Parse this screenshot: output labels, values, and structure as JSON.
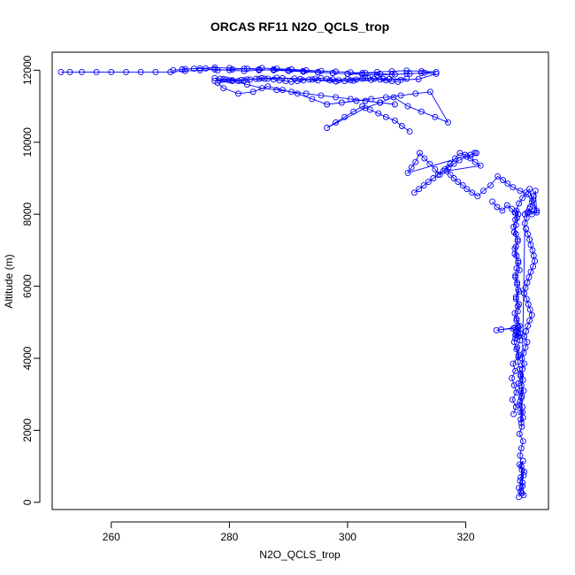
{
  "chart_data": {
    "type": "scatter",
    "title": "ORCAS RF11 N2O_QCLS_trop",
    "xlabel": "N2O_QCLS_trop",
    "ylabel": "Altitude (m)",
    "xlim": [
      250,
      334
    ],
    "ylim": [
      -200,
      12500
    ],
    "xticks": [
      260,
      280,
      300,
      320
    ],
    "yticks": [
      0,
      2000,
      4000,
      6000,
      8000,
      10000,
      12000
    ],
    "grid": false,
    "legend": "none",
    "marker": "open-circle",
    "connected": true,
    "series_color": "#0000ff",
    "series": [
      {
        "x": [
          329.0,
          329.3,
          329.6,
          329.2,
          329.8,
          329.5,
          329.1,
          329.7,
          329.4,
          329.9,
          329.3,
          329.6,
          329.0,
          329.5,
          329.8,
          329.2,
          329.4,
          329.7,
          329.1,
          329.5,
          329.3,
          329.6,
          329.0,
          329.4,
          329.2,
          328.9,
          329.3,
          329.1,
          328.8,
          329.0,
          328.7,
          329.2,
          328.9,
          329.1,
          328.6,
          328.8,
          329.0,
          328.5,
          328.9,
          328.7,
          328.4,
          328.6,
          328.9,
          328.3,
          328.5,
          328.8,
          328.2,
          328.5,
          328.7,
          328.3,
          328.6,
          328.9,
          328.4,
          328.1,
          328.5,
          328.8,
          328.3,
          328.6,
          328.9,
          329.1,
          328.4,
          328.7,
          329.0,
          328.5,
          328.8,
          328.3,
          328.6,
          328.9,
          328.4,
          328.2,
          328.6,
          328.9,
          328.0,
          328.4,
          327.8,
          328.2,
          328.6,
          327.9,
          328.5,
          328.1
        ],
        "y": [
          150,
          300,
          450,
          600,
          750,
          900,
          1050,
          1150,
          1000,
          850,
          700,
          550,
          400,
          250,
          200,
          1300,
          1500,
          1700,
          1900,
          2100,
          2300,
          2500,
          2700,
          2900,
          3100,
          3300,
          3500,
          3700,
          3900,
          4100,
          4300,
          4500,
          4700,
          4900,
          5100,
          5300,
          5500,
          5700,
          5900,
          6100,
          6300,
          6500,
          6700,
          6900,
          7100,
          7300,
          7500,
          7700,
          7900,
          8050,
          8100,
          8000,
          7850,
          7650,
          7450,
          7250,
          7050,
          6850,
          6650,
          6450,
          6250,
          6050,
          5850,
          5650,
          5450,
          5250,
          5050,
          4850,
          4650,
          4450,
          4250,
          4050,
          3850,
          3650,
          3450,
          3250,
          3050,
          2850,
          2650,
          2450
        ]
      },
      {
        "x": [
          330.2,
          330.5,
          330.8,
          331.0,
          331.3,
          331.5,
          331.7,
          331.4,
          331.0,
          330.7,
          330.4,
          330.1,
          329.9,
          330.3,
          330.6,
          330.9,
          331.2,
          330.8,
          330.5,
          330.2,
          329.9,
          330.4,
          330.1,
          329.8,
          329.5,
          329.9,
          329.6,
          329.3,
          329.7,
          329.4,
          329.8,
          329.5,
          329.2,
          329.6,
          329.3,
          329.7,
          329.4,
          330.0,
          330.3,
          330.6,
          330.9,
          331.2,
          331.5,
          331.8,
          332.0,
          331.6,
          331.2,
          330.8,
          330.4,
          330.0
        ],
        "y": [
          7600,
          7450,
          7300,
          7150,
          7000,
          6850,
          6700,
          6550,
          6400,
          6250,
          6100,
          5950,
          5800,
          5650,
          5500,
          5350,
          5200,
          5050,
          4900,
          4750,
          4600,
          4450,
          4300,
          4150,
          4000,
          3850,
          3700,
          3550,
          3400,
          3250,
          3100,
          2950,
          2800,
          2650,
          2500,
          2350,
          2200,
          7750,
          7900,
          8050,
          8200,
          8350,
          8500,
          8650,
          8050,
          8100,
          8000,
          8150,
          8050,
          8000
        ]
      },
      {
        "x": [
          324.5,
          325.3,
          326.2,
          327.0,
          327.8,
          328.4,
          329.0,
          329.6,
          330.2,
          330.8,
          331.4,
          332.0,
          330.5,
          329.2,
          328.0,
          327.1,
          326.3,
          325.4,
          324.2,
          323.0,
          322.0,
          321.1,
          320.2,
          319.5,
          318.7,
          318.0,
          317.4,
          316.8,
          322.5,
          321.6,
          320.8,
          319.9,
          319.0,
          318.2,
          317.4,
          316.5,
          315.6,
          314.8,
          313.9,
          313.0,
          312.2,
          311.5,
          310.8,
          310.2,
          321.8,
          321.5,
          320.8,
          320.2,
          318.9,
          318.0,
          317.1,
          316.2,
          315.3,
          314.5,
          313.7,
          312.9,
          312.1,
          311.3
        ],
        "y": [
          8350,
          8200,
          8100,
          8250,
          8150,
          8050,
          8300,
          8450,
          8600,
          8700,
          8400,
          8100,
          8550,
          8650,
          8750,
          8850,
          8950,
          9050,
          8800,
          8650,
          8500,
          8600,
          8700,
          8800,
          8900,
          9000,
          9100,
          9200,
          9350,
          9450,
          9550,
          9650,
          9700,
          9550,
          9400,
          9250,
          9100,
          9250,
          9400,
          9550,
          9700,
          9450,
          9300,
          9150,
          9700,
          9700,
          9650,
          9600,
          9500,
          9400,
          9300,
          9200,
          9100,
          9000,
          8900,
          8800,
          8700,
          8600
        ]
      },
      {
        "x": [
          310.5,
          309.2,
          308.0,
          306.5,
          305.2,
          303.8,
          302.5,
          301.0,
          299.5,
          298.0,
          296.5,
          303.0,
          305.5,
          307.8,
          310.2,
          312.5,
          314.8,
          317.0,
          314.0,
          311.5,
          309.0,
          306.5,
          304.0,
          301.5,
          299.0,
          296.5,
          294.0,
          291.5,
          289.0,
          286.5,
          284.0,
          281.5,
          279.0,
          278.0,
          280.5,
          283.0,
          285.5,
          288.0,
          290.5,
          293.0,
          295.5,
          298.0,
          300.5,
          303.0,
          305.5,
          308.0
        ],
        "y": [
          10300,
          10450,
          10600,
          10700,
          10800,
          10900,
          11000,
          10850,
          10700,
          10550,
          10400,
          10950,
          11100,
          11250,
          11000,
          10850,
          10700,
          10550,
          11400,
          11350,
          11300,
          11250,
          11200,
          11150,
          11100,
          11050,
          11200,
          11350,
          11450,
          11550,
          11400,
          11350,
          11500,
          11650,
          11700,
          11600,
          11500,
          11450,
          11400,
          11350,
          11300,
          11250,
          11200,
          11150,
          11100,
          11050
        ]
      },
      {
        "x": [
          251.5,
          253.0,
          255.0,
          257.5,
          260.0,
          262.5,
          265.0,
          267.5,
          270.0,
          272.5,
          275.0,
          277.5,
          280.0,
          282.5,
          285.0,
          287.5,
          290.0,
          292.5,
          295.0,
          297.5,
          300.0,
          302.5,
          305.0,
          307.5,
          310.0,
          312.5,
          315.0,
          313.0,
          310.5,
          308.0,
          305.5,
          303.0,
          300.5,
          298.0,
          295.5,
          293.0,
          290.5,
          288.0,
          285.5,
          283.0,
          280.5,
          278.0,
          276.0,
          274.0,
          272.0,
          270.5,
          272.5,
          275.0,
          277.5,
          280.0,
          282.5,
          285.0,
          287.5,
          290.0,
          292.5,
          295.0,
          297.5,
          300.0,
          302.5,
          305.0,
          307.5,
          310.0,
          312.5,
          315.0,
          312.0,
          309.0,
          306.0,
          303.0,
          300.0,
          297.0,
          294.0,
          291.0,
          288.0,
          285.0,
          282.0,
          279.0,
          277.5,
          280.0,
          283.0,
          286.0,
          289.0,
          292.0,
          295.0,
          298.0,
          301.0,
          304.0,
          307.0,
          310.0
        ],
        "y": [
          11950,
          11950,
          11950,
          11950,
          11950,
          11950,
          11950,
          11950,
          11950,
          11980,
          12000,
          12020,
          12000,
          11980,
          12000,
          12020,
          12000,
          11980,
          11950,
          11920,
          11900,
          11920,
          11950,
          11970,
          11990,
          11970,
          11950,
          11930,
          11900,
          11880,
          11900,
          11920,
          11940,
          11960,
          11980,
          12000,
          12020,
          12040,
          12060,
          12040,
          12020,
          12000,
          12050,
          12040,
          12020,
          12000,
          12030,
          12050,
          12070,
          12060,
          12040,
          12020,
          12000,
          11980,
          11960,
          11940,
          11920,
          11900,
          11880,
          11860,
          11880,
          11900,
          11920,
          11900,
          11750,
          11730,
          11760,
          11780,
          11750,
          11720,
          11740,
          11770,
          11790,
          11760,
          11730,
          11750,
          11700,
          11720,
          11740,
          11760,
          11780,
          11750,
          11720,
          11690,
          11710,
          11730,
          11750,
          11760
        ]
      },
      {
        "x": [
          277.5,
          278.5,
          279.5,
          280.5,
          281.5,
          282.5,
          283.5,
          284.5,
          285.5,
          286.5,
          287.5,
          288.5,
          289.5,
          290.5,
          291.5,
          292.5,
          293.5,
          294.5,
          295.5,
          296.5,
          297.5,
          298.5,
          299.5,
          300.5,
          301.5,
          302.5,
          303.5,
          304.5,
          305.5,
          306.5,
          307.5,
          308.5
        ],
        "y": [
          11780,
          11760,
          11740,
          11720,
          11700,
          11720,
          11740,
          11760,
          11780,
          11760,
          11740,
          11720,
          11700,
          11680,
          11700,
          11720,
          11740,
          11760,
          11780,
          11760,
          11740,
          11720,
          11700,
          11720,
          11740,
          11760,
          11780,
          11760,
          11740,
          11720,
          11700,
          11680
        ]
      },
      {
        "x": [
          328.5,
          328.0,
          326.0,
          325.2,
          328.3,
          328.8,
          329.2,
          328.6,
          328.9,
          328.4
        ],
        "y": [
          4750,
          4820,
          4800,
          4780,
          4850,
          4900,
          4700,
          4650,
          4600,
          4550
        ]
      }
    ]
  }
}
